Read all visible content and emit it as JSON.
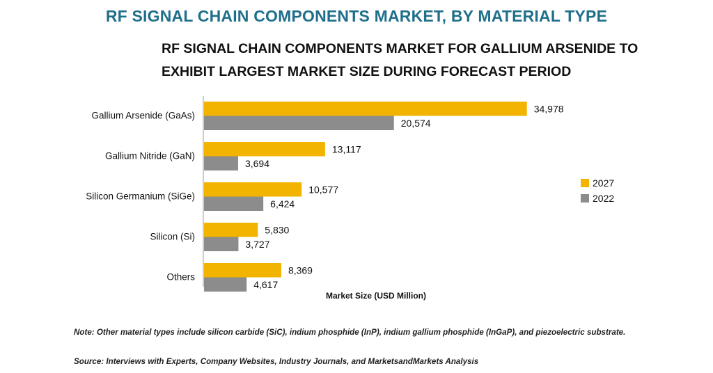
{
  "header": {
    "title": "RF SIGNAL CHAIN COMPONENTS MARKET, BY MATERIAL TYPE",
    "subtitle": "RF SIGNAL CHAIN COMPONENTS MARKET FOR GALLIUM ARSENIDE TO EXHIBIT LARGEST MARKET SIZE DURING FORECAST PERIOD"
  },
  "chart_data": {
    "type": "bar",
    "orientation": "horizontal",
    "categories": [
      "Gallium Arsenide (GaAs)",
      "Gallium Nitride (GaN)",
      "Silicon Germanium (SiGe)",
      "Silicon (Si)",
      "Others"
    ],
    "series": [
      {
        "name": "2027",
        "values": [
          34978,
          13117,
          10577,
          5830,
          8369
        ],
        "labels": [
          "34,978",
          "13,117",
          "10,577",
          "5,830",
          "8,369"
        ],
        "color": "#f2b400"
      },
      {
        "name": "2022",
        "values": [
          20574,
          3694,
          6424,
          3727,
          4617
        ],
        "labels": [
          "20,574",
          "3,694",
          "6,424",
          "3,727",
          "4,617"
        ],
        "color": "#8c8c8c"
      }
    ],
    "xlabel": "Market Size (USD Million)",
    "ylabel": "",
    "xlim": [
      0,
      35000
    ],
    "grid": false,
    "legend": "right"
  },
  "footer": {
    "note": "Note: Other material types include silicon carbide (SiC), indium phosphide (InP), indium gallium phosphide (InGaP), and piezoelectric substrate.",
    "source": "Source: Interviews with Experts, Company Websites, Industry Journals, and MarketsandMarkets Analysis"
  }
}
